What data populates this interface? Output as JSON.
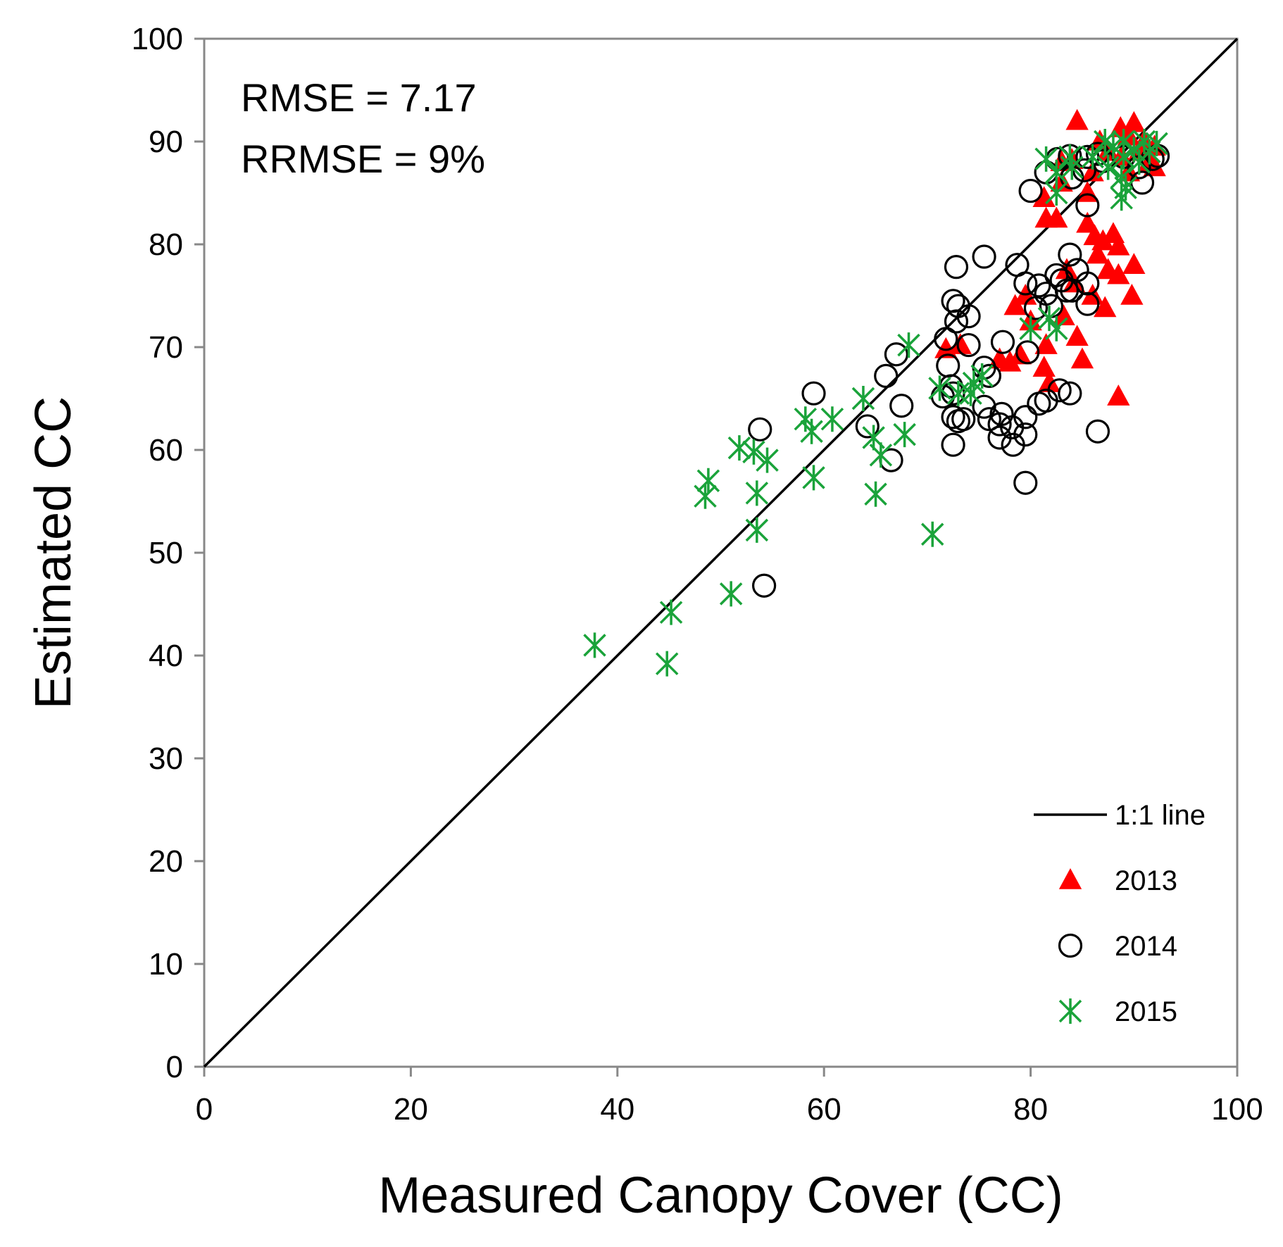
{
  "chart_data": {
    "type": "scatter",
    "xlabel": "Measured Canopy Cover (CC)",
    "ylabel": "Estimated CC",
    "xlim": [
      0,
      100
    ],
    "ylim": [
      0,
      100
    ],
    "x_ticks": [
      0,
      20,
      40,
      60,
      80,
      100
    ],
    "y_ticks": [
      0,
      10,
      20,
      30,
      40,
      50,
      60,
      70,
      80,
      90,
      100
    ],
    "grid": false,
    "annotations": [
      "RMSE = 7.17",
      "RRMSE = 9%"
    ],
    "legend_position": "bottom-right",
    "reference_line": {
      "name": "1:1 line",
      "from": [
        0,
        0
      ],
      "to": [
        100,
        100
      ],
      "color": "#000000"
    },
    "series": [
      {
        "name": "2013",
        "marker": "triangle",
        "color": "#ff0000",
        "points": [
          [
            84.5,
            92
          ],
          [
            88.7,
            91.3
          ],
          [
            90,
            91.8
          ],
          [
            89.5,
            90.5
          ],
          [
            91,
            90
          ],
          [
            92,
            89.5
          ],
          [
            90.5,
            89
          ],
          [
            88.8,
            88.5
          ],
          [
            91.5,
            88
          ],
          [
            89.5,
            87
          ],
          [
            92,
            87.5
          ],
          [
            86.7,
            90
          ],
          [
            87.5,
            89
          ],
          [
            86,
            87
          ],
          [
            83,
            88
          ],
          [
            84,
            88.2
          ],
          [
            85.5,
            85
          ],
          [
            83,
            86
          ],
          [
            81.3,
            84.5
          ],
          [
            81.5,
            82.5
          ],
          [
            82.5,
            82.5
          ],
          [
            85.5,
            82
          ],
          [
            86.2,
            80.8
          ],
          [
            87,
            80.3
          ],
          [
            88,
            81
          ],
          [
            88.5,
            79.8
          ],
          [
            86.5,
            79
          ],
          [
            87.5,
            77.5
          ],
          [
            88.5,
            77
          ],
          [
            90,
            78
          ],
          [
            86,
            75
          ],
          [
            87.2,
            73.8
          ],
          [
            89.8,
            75
          ],
          [
            83.5,
            77.5
          ],
          [
            84.2,
            76.2
          ],
          [
            79.5,
            75
          ],
          [
            78.5,
            74
          ],
          [
            80,
            72.5
          ],
          [
            83.2,
            73
          ],
          [
            81.5,
            70.2
          ],
          [
            84.5,
            71
          ],
          [
            81.3,
            68
          ],
          [
            85,
            68.8
          ],
          [
            81.8,
            66.5
          ],
          [
            79,
            69.2
          ],
          [
            78,
            68.5
          ],
          [
            77,
            68.8
          ],
          [
            73.2,
            70.2
          ],
          [
            71.8,
            69.8
          ],
          [
            88.5,
            65.2
          ]
        ]
      },
      {
        "name": "2014",
        "marker": "circle",
        "color": "#000000",
        "points": [
          [
            82.6,
            88.3
          ],
          [
            83.8,
            88.6
          ],
          [
            85.5,
            88.5
          ],
          [
            86.5,
            88.8
          ],
          [
            87,
            88.1
          ],
          [
            85.2,
            87.2
          ],
          [
            84,
            86.5
          ],
          [
            81.5,
            87
          ],
          [
            80,
            85.2
          ],
          [
            85.5,
            83.8
          ],
          [
            89,
            88.5
          ],
          [
            90.5,
            87.5
          ],
          [
            91.8,
            88.3
          ],
          [
            92.3,
            88.6
          ],
          [
            90.8,
            86
          ],
          [
            75.5,
            78.8
          ],
          [
            72.8,
            77.8
          ],
          [
            78.7,
            78
          ],
          [
            79.5,
            76.2
          ],
          [
            83.8,
            79
          ],
          [
            84.5,
            77.5
          ],
          [
            83,
            76.5
          ],
          [
            82.5,
            77
          ],
          [
            84,
            75.5
          ],
          [
            85.5,
            76.2
          ],
          [
            80.8,
            76
          ],
          [
            81.5,
            75.2
          ],
          [
            80.5,
            73.8
          ],
          [
            82,
            74
          ],
          [
            83.5,
            75.5
          ],
          [
            85.5,
            74.2
          ],
          [
            72.5,
            74.5
          ],
          [
            73,
            74
          ],
          [
            74,
            73
          ],
          [
            72.8,
            72.5
          ],
          [
            71.8,
            70.8
          ],
          [
            74,
            70.2
          ],
          [
            77.3,
            70.5
          ],
          [
            79.7,
            69.5
          ],
          [
            72,
            68.2
          ],
          [
            75.5,
            68
          ],
          [
            76,
            67.2
          ],
          [
            66,
            67.2
          ],
          [
            67,
            69.3
          ],
          [
            72.3,
            66.2
          ],
          [
            72.5,
            65.5
          ],
          [
            71.5,
            65.2
          ],
          [
            75.5,
            64.2
          ],
          [
            77.2,
            63.5
          ],
          [
            76,
            63
          ],
          [
            77,
            62.5
          ],
          [
            79.5,
            63.2
          ],
          [
            80.8,
            64.5
          ],
          [
            81.5,
            64.8
          ],
          [
            82.8,
            65.8
          ],
          [
            83.8,
            65.5
          ],
          [
            72.5,
            63.2
          ],
          [
            73,
            62.8
          ],
          [
            73.5,
            63
          ],
          [
            78.2,
            62.2
          ],
          [
            79.5,
            61.5
          ],
          [
            77,
            61.2
          ],
          [
            78.3,
            60.5
          ],
          [
            72.5,
            60.5
          ],
          [
            86.5,
            61.8
          ],
          [
            79.5,
            56.8
          ],
          [
            59,
            65.5
          ],
          [
            64.2,
            62.3
          ],
          [
            67.5,
            64.3
          ],
          [
            53.8,
            62
          ],
          [
            66.5,
            59
          ],
          [
            54.2,
            46.8
          ]
        ]
      },
      {
        "name": "2015",
        "marker": "asterisk",
        "color": "#1aa33a",
        "points": [
          [
            81.5,
            88.3
          ],
          [
            83.8,
            88.5
          ],
          [
            82.5,
            87
          ],
          [
            82.5,
            85
          ],
          [
            86,
            88.5
          ],
          [
            84,
            87.5
          ],
          [
            87.2,
            90
          ],
          [
            88,
            89.5
          ],
          [
            89,
            90
          ],
          [
            90,
            89.2
          ],
          [
            91,
            90
          ],
          [
            92.2,
            89.8
          ],
          [
            89,
            88.5
          ],
          [
            90.5,
            88
          ],
          [
            87.5,
            87.5
          ],
          [
            88.8,
            86.5
          ],
          [
            89.2,
            85.5
          ],
          [
            88.8,
            84.5
          ],
          [
            91.5,
            89
          ],
          [
            80,
            71.8
          ],
          [
            81.8,
            72.8
          ],
          [
            82.5,
            71.8
          ],
          [
            68.2,
            70.2
          ],
          [
            71.2,
            66
          ],
          [
            73,
            65.5
          ],
          [
            74.5,
            66.5
          ],
          [
            75.3,
            67.2
          ],
          [
            74.2,
            65.5
          ],
          [
            63.8,
            65
          ],
          [
            60.8,
            63
          ],
          [
            58.2,
            63
          ],
          [
            58.8,
            61.8
          ],
          [
            64.8,
            61.2
          ],
          [
            65.5,
            59.5
          ],
          [
            67.8,
            61.5
          ],
          [
            51.8,
            60.2
          ],
          [
            53.2,
            59.8
          ],
          [
            54.5,
            59
          ],
          [
            48.8,
            57
          ],
          [
            48.5,
            55.5
          ],
          [
            53.5,
            55.8
          ],
          [
            59,
            57.3
          ],
          [
            65,
            55.7
          ],
          [
            53.5,
            52.2
          ],
          [
            70.5,
            51.8
          ],
          [
            51,
            46
          ],
          [
            45.2,
            44.2
          ],
          [
            44.8,
            39.2
          ],
          [
            37.8,
            41
          ]
        ]
      }
    ]
  }
}
